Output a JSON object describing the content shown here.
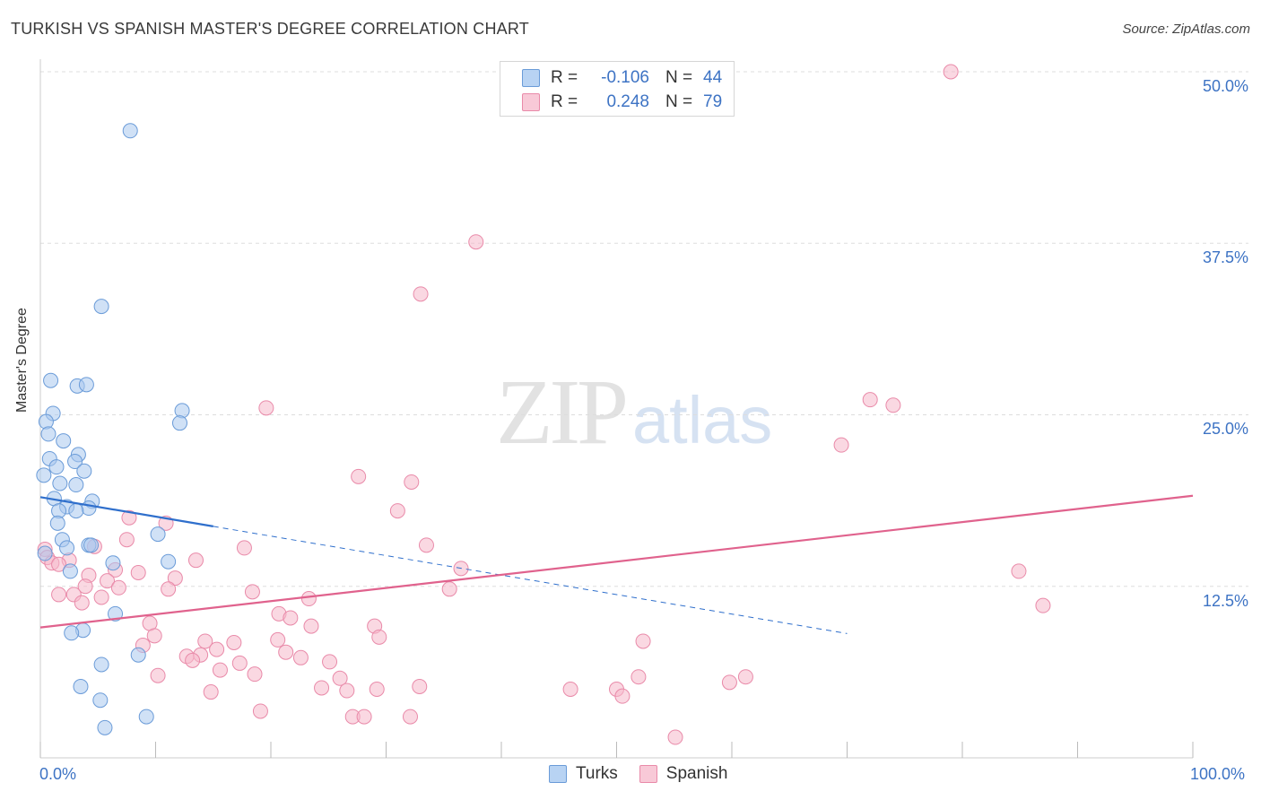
{
  "header": {
    "title": "TURKISH VS SPANISH MASTER'S DEGREE CORRELATION CHART",
    "source": "Source: ZipAtlas.com"
  },
  "watermark": {
    "zip": "ZIP",
    "atlas": "atlas"
  },
  "legend": {
    "turks": {
      "r_label": "R =",
      "r_value": "-0.106",
      "n_label": "N =",
      "n_value": "44"
    },
    "spanish": {
      "r_label": "R =",
      "r_value": "0.248",
      "n_label": "N =",
      "n_value": "79"
    }
  },
  "bottom_legend": {
    "turks": "Turks",
    "spanish": "Spanish"
  },
  "colors": {
    "turks_fill": "#a9c8ee",
    "turks_stroke": "#6a9bd8",
    "turks_line": "#2f6fcc",
    "spanish_fill": "#f5b8cb",
    "spanish_stroke": "#e98aa9",
    "spanish_line": "#e0628d",
    "axis_text": "#3d73c4",
    "grid": "#dddddd"
  },
  "chart_data": {
    "type": "scatter",
    "title": "TURKISH VS SPANISH MASTER'S DEGREE CORRELATION CHART",
    "xlabel": "",
    "ylabel": "Master's Degree",
    "xlim": [
      0,
      100
    ],
    "ylim": [
      0,
      50
    ],
    "x_tick_labels": [
      "0.0%",
      "100.0%"
    ],
    "y_ticks": [
      12.5,
      25.0,
      37.5,
      50.0
    ],
    "y_tick_labels": [
      "12.5%",
      "25.0%",
      "37.5%",
      "50.0%"
    ],
    "grid": true,
    "legend_position": "top-center",
    "series": [
      {
        "name": "Turks",
        "points": [
          [
            7.8,
            45.7
          ],
          [
            5.3,
            32.9
          ],
          [
            0.9,
            27.5
          ],
          [
            3.2,
            27.1
          ],
          [
            4.0,
            27.2
          ],
          [
            12.3,
            25.3
          ],
          [
            12.1,
            24.4
          ],
          [
            1.1,
            25.1
          ],
          [
            0.5,
            24.5
          ],
          [
            0.7,
            23.6
          ],
          [
            2.0,
            23.1
          ],
          [
            3.3,
            22.1
          ],
          [
            0.8,
            21.8
          ],
          [
            3.0,
            21.6
          ],
          [
            1.4,
            21.2
          ],
          [
            3.8,
            20.9
          ],
          [
            0.3,
            20.6
          ],
          [
            1.7,
            20.0
          ],
          [
            3.1,
            19.9
          ],
          [
            1.2,
            18.9
          ],
          [
            4.5,
            18.7
          ],
          [
            2.3,
            18.3
          ],
          [
            4.2,
            18.2
          ],
          [
            1.6,
            18.0
          ],
          [
            3.1,
            18.0
          ],
          [
            1.5,
            17.1
          ],
          [
            10.2,
            16.3
          ],
          [
            1.9,
            15.9
          ],
          [
            4.2,
            15.5
          ],
          [
            4.4,
            15.5
          ],
          [
            2.3,
            15.3
          ],
          [
            0.4,
            14.9
          ],
          [
            6.3,
            14.2
          ],
          [
            11.1,
            14.3
          ],
          [
            2.6,
            13.6
          ],
          [
            6.5,
            10.5
          ],
          [
            3.7,
            9.3
          ],
          [
            2.7,
            9.1
          ],
          [
            8.5,
            7.5
          ],
          [
            5.3,
            6.8
          ],
          [
            3.5,
            5.2
          ],
          [
            5.2,
            4.2
          ],
          [
            9.2,
            3.0
          ],
          [
            5.6,
            2.2
          ]
        ]
      },
      {
        "name": "Spanish",
        "points": [
          [
            79.0,
            50.0
          ],
          [
            37.8,
            37.6
          ],
          [
            33.0,
            33.8
          ],
          [
            72.0,
            26.1
          ],
          [
            74.0,
            25.7
          ],
          [
            19.6,
            25.5
          ],
          [
            69.5,
            22.8
          ],
          [
            27.6,
            20.5
          ],
          [
            32.2,
            20.1
          ],
          [
            31.0,
            18.0
          ],
          [
            7.7,
            17.5
          ],
          [
            10.9,
            17.1
          ],
          [
            7.5,
            15.9
          ],
          [
            33.5,
            15.5
          ],
          [
            4.7,
            15.4
          ],
          [
            17.7,
            15.3
          ],
          [
            0.4,
            15.2
          ],
          [
            0.6,
            14.6
          ],
          [
            2.5,
            14.4
          ],
          [
            13.5,
            14.4
          ],
          [
            1.0,
            14.2
          ],
          [
            1.6,
            14.1
          ],
          [
            6.5,
            13.7
          ],
          [
            36.5,
            13.8
          ],
          [
            84.9,
            13.6
          ],
          [
            8.5,
            13.5
          ],
          [
            4.2,
            13.3
          ],
          [
            11.7,
            13.1
          ],
          [
            5.8,
            12.9
          ],
          [
            3.9,
            12.5
          ],
          [
            6.8,
            12.4
          ],
          [
            11.1,
            12.3
          ],
          [
            35.5,
            12.3
          ],
          [
            18.4,
            12.1
          ],
          [
            1.6,
            11.9
          ],
          [
            2.9,
            11.9
          ],
          [
            5.3,
            11.7
          ],
          [
            23.3,
            11.6
          ],
          [
            3.6,
            11.3
          ],
          [
            87.0,
            11.1
          ],
          [
            20.7,
            10.5
          ],
          [
            21.7,
            10.2
          ],
          [
            9.5,
            9.8
          ],
          [
            23.5,
            9.6
          ],
          [
            29.0,
            9.6
          ],
          [
            9.9,
            8.9
          ],
          [
            29.4,
            8.8
          ],
          [
            20.6,
            8.6
          ],
          [
            14.3,
            8.5
          ],
          [
            16.8,
            8.4
          ],
          [
            52.3,
            8.5
          ],
          [
            8.9,
            8.2
          ],
          [
            15.3,
            7.9
          ],
          [
            21.3,
            7.7
          ],
          [
            12.7,
            7.4
          ],
          [
            13.9,
            7.5
          ],
          [
            22.6,
            7.3
          ],
          [
            13.2,
            7.1
          ],
          [
            25.1,
            7.0
          ],
          [
            17.3,
            6.9
          ],
          [
            15.6,
            6.4
          ],
          [
            18.6,
            6.1
          ],
          [
            10.2,
            6.0
          ],
          [
            51.9,
            5.9
          ],
          [
            61.2,
            5.9
          ],
          [
            26.0,
            5.8
          ],
          [
            32.9,
            5.2
          ],
          [
            59.8,
            5.5
          ],
          [
            24.4,
            5.1
          ],
          [
            46.0,
            5.0
          ],
          [
            26.6,
            4.9
          ],
          [
            29.2,
            5.0
          ],
          [
            50.0,
            5.0
          ],
          [
            14.8,
            4.8
          ],
          [
            50.5,
            4.5
          ],
          [
            19.1,
            3.4
          ],
          [
            27.1,
            3.0
          ],
          [
            28.1,
            3.0
          ],
          [
            32.1,
            3.0
          ],
          [
            55.1,
            1.5
          ]
        ]
      }
    ],
    "trend_lines": [
      {
        "series": "Turks",
        "solid_range": [
          0,
          15
        ],
        "dashed_range": [
          15,
          70
        ],
        "y_at_0": 19.0,
        "y_at_100": 4.8
      },
      {
        "series": "Spanish",
        "range": [
          0,
          100
        ],
        "y_at_0": 9.5,
        "y_at_100": 19.1
      }
    ]
  }
}
